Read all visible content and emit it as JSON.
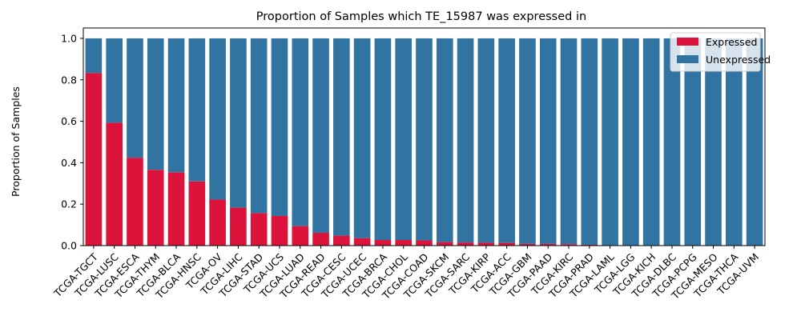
{
  "chart_data": {
    "type": "bar",
    "stacked": true,
    "title": "Proportion of Samples which TE_15987 was expressed in",
    "xlabel": "",
    "ylabel": "Proportion of Samples",
    "ylim": [
      0,
      1.05
    ],
    "yticks": [
      "0.0",
      "0.2",
      "0.4",
      "0.6",
      "0.8",
      "1.0"
    ],
    "grid": false,
    "legend_position": "top-right",
    "categories": [
      "TCGA-TGCT",
      "TCGA-LUSC",
      "TCGA-ESCA",
      "TCGA-THYM",
      "TCGA-BLCA",
      "TCGA-HNSC",
      "TCGA-OV",
      "TCGA-LIHC",
      "TCGA-STAD",
      "TCGA-UCS",
      "TCGA-LUAD",
      "TCGA-READ",
      "TCGA-CESC",
      "TCGA-UCEC",
      "TCGA-BRCA",
      "TCGA-CHOL",
      "TCGA-COAD",
      "TCGA-SKCM",
      "TCGA-SARC",
      "TCGA-KIRP",
      "TCGA-ACC",
      "TCGA-GBM",
      "TCGA-PAAD",
      "TCGA-KIRC",
      "TCGA-PRAD",
      "TCGA-LAML",
      "TCGA-LGG",
      "TCGA-KICH",
      "TCGA-DLBC",
      "TCGA-PCPG",
      "TCGA-MESO",
      "TCGA-THCA",
      "TCGA-UVM"
    ],
    "series": [
      {
        "name": "Expressed",
        "color": "#dc143c",
        "values": [
          0.833,
          0.593,
          0.424,
          0.366,
          0.354,
          0.31,
          0.222,
          0.183,
          0.157,
          0.143,
          0.094,
          0.062,
          0.048,
          0.036,
          0.027,
          0.027,
          0.025,
          0.017,
          0.015,
          0.014,
          0.013,
          0.008,
          0.008,
          0.007,
          0.004,
          0,
          0,
          0,
          0,
          0,
          0,
          0,
          0
        ]
      },
      {
        "name": "Unexpressed",
        "color": "#3274a1",
        "values": [
          0.167,
          0.407,
          0.576,
          0.634,
          0.646,
          0.69,
          0.778,
          0.817,
          0.843,
          0.857,
          0.906,
          0.938,
          0.952,
          0.964,
          0.973,
          0.973,
          0.975,
          0.983,
          0.985,
          0.986,
          0.987,
          0.992,
          0.992,
          0.993,
          0.996,
          1,
          1,
          1,
          1,
          1,
          1,
          1,
          1
        ]
      }
    ]
  }
}
